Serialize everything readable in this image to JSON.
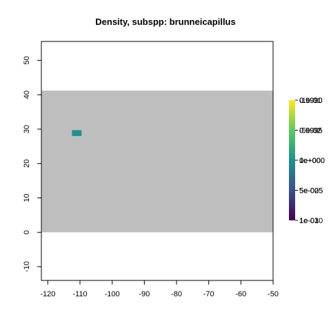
{
  "chart_data": {
    "type": "heatmap",
    "title": "Density, subspp: brunneicapillus",
    "xlabel": "",
    "ylabel": "",
    "xlim": [
      -122,
      -50
    ],
    "ylim": [
      -14,
      55.5
    ],
    "x_ticks": [
      -120,
      -110,
      -100,
      -90,
      -80,
      -70,
      -60,
      -50
    ],
    "y_ticks": [
      -10,
      0,
      10,
      20,
      30,
      40,
      50
    ],
    "background_region": {
      "x": [
        -122,
        -50
      ],
      "y": [
        0,
        41.2
      ],
      "color": "#bebebe"
    },
    "cells": [
      {
        "x0": -112.5,
        "x1": -109.5,
        "y0": 28,
        "y1": 29.7,
        "value": 1.0,
        "color": "#21908d"
      }
    ],
    "colorbar": {
      "colors": [
        "#440154",
        "#3b528b",
        "#21908d",
        "#5dc962",
        "#fde725"
      ],
      "label_groups": [
        [
          "1e-01",
          "1e-03",
          "1e-010"
        ],
        [
          "5e-02",
          "5e-005",
          "5e-005"
        ],
        [
          "0e+00",
          "1e+000",
          "0e+000"
        ],
        [
          "-5e-02",
          "0.9995",
          "0.9995"
        ],
        [
          "-1e-01",
          "0.9990",
          "0.9990"
        ]
      ]
    }
  }
}
